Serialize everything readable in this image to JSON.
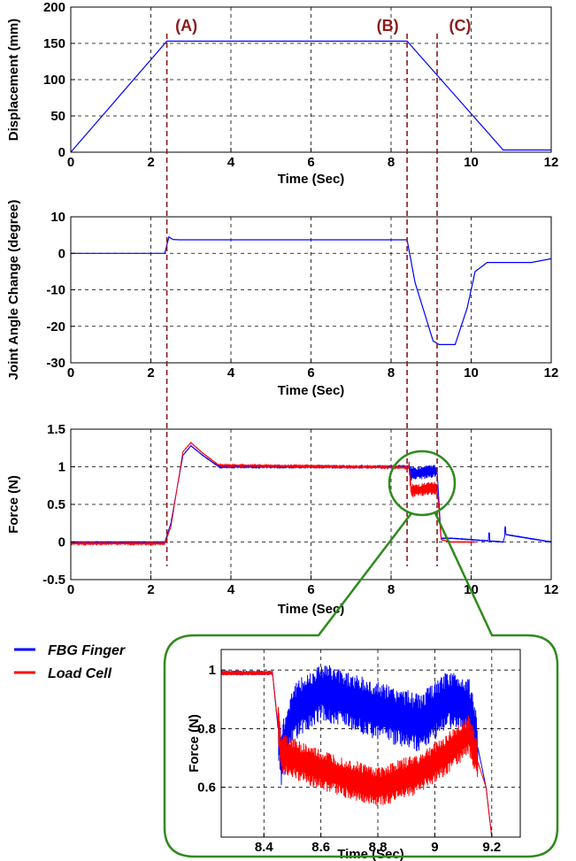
{
  "chart_data": [
    {
      "type": "line",
      "xlabel": "Time (Sec)",
      "ylabel": "Displacement (mm)",
      "xlim": [
        0,
        12
      ],
      "ylim": [
        0,
        200
      ],
      "xticks": [
        "0",
        "2",
        "4",
        "6",
        "8",
        "10",
        "12"
      ],
      "yticks": [
        "0",
        "50",
        "100",
        "150",
        "200"
      ],
      "grid": true,
      "series": [
        {
          "color": "#0000ff",
          "x": [
            0,
            2.4,
            8.4,
            10.8,
            12
          ],
          "y": [
            0,
            153,
            153,
            3,
            3
          ]
        }
      ]
    },
    {
      "type": "line",
      "xlabel": "Time (Sec)",
      "ylabel": "Joint Angle Change (degree)",
      "xlim": [
        0,
        12
      ],
      "ylim": [
        -30,
        10
      ],
      "xticks": [
        "0",
        "2",
        "4",
        "6",
        "8",
        "10",
        "12"
      ],
      "yticks": [
        "10",
        "0",
        "-10",
        "-20",
        "-30"
      ],
      "grid": true,
      "series": [
        {
          "color": "#0000ff",
          "x": [
            0,
            2.35,
            2.45,
            2.55,
            2.7,
            8.4,
            8.6,
            9.05,
            9.2,
            9.6,
            9.9,
            10.1,
            10.4,
            11.5,
            12
          ],
          "y": [
            0,
            0,
            4.5,
            3.8,
            3.7,
            3.7,
            -8,
            -24,
            -25,
            -25,
            -15,
            -5,
            -2.5,
            -2.5,
            -1.5
          ]
        }
      ]
    },
    {
      "type": "line",
      "xlabel": "Time (Sec)",
      "ylabel": "Force (N)",
      "xlim": [
        0,
        12
      ],
      "ylim": [
        -0.5,
        1.5
      ],
      "xticks": [
        "0",
        "2",
        "4",
        "6",
        "8",
        "10",
        "12"
      ],
      "yticks": [
        "1.5",
        "1",
        "0.5",
        "0",
        "-0.5"
      ],
      "grid": true,
      "series": [
        {
          "name": "FBG Finger",
          "color": "#0000ff",
          "x": [
            0,
            2.35,
            2.5,
            2.8,
            3.0,
            3.3,
            3.7,
            8.45,
            8.5,
            9.15,
            9.25,
            9.5,
            10.8,
            10.85,
            12
          ],
          "y": [
            0,
            0,
            0.25,
            1.15,
            1.28,
            1.15,
            1.0,
            1.0,
            0.9,
            0.95,
            0.05,
            0.05,
            0.0,
            0.1,
            0.0
          ]
        },
        {
          "name": "Load Cell",
          "color": "#ff0000",
          "x": [
            0,
            2.35,
            2.5,
            2.8,
            3.0,
            3.3,
            3.7,
            8.45,
            8.5,
            9.15,
            9.25,
            9.5,
            10.1
          ],
          "y": [
            -0.02,
            -0.02,
            0.2,
            1.2,
            1.32,
            1.18,
            1.02,
            0.99,
            0.68,
            0.72,
            0.03,
            0.0,
            0.0
          ]
        }
      ]
    },
    {
      "type": "line",
      "xlabel": "Time (Sec)",
      "ylabel": "Force (N)",
      "xlim": [
        8.25,
        9.3
      ],
      "ylim": [
        0.43,
        1.07
      ],
      "xticks": [
        "8.4",
        "8.6",
        "8.8",
        "9",
        "9.2"
      ],
      "yticks": [
        "1",
        "0.8",
        "0.6"
      ],
      "grid": true,
      "series": [
        {
          "name": "FBG Finger",
          "color": "#0000ff",
          "x": [
            8.25,
            8.43,
            8.46,
            8.5,
            8.6,
            8.8,
            8.95,
            9.05,
            9.12,
            9.18,
            9.2
          ],
          "y": [
            0.99,
            0.99,
            0.7,
            0.85,
            0.93,
            0.86,
            0.82,
            0.9,
            0.88,
            0.6,
            0.43
          ]
        },
        {
          "name": "Load Cell",
          "color": "#ff0000",
          "x": [
            8.25,
            8.43,
            8.46,
            8.5,
            8.6,
            8.8,
            8.95,
            9.05,
            9.12,
            9.18,
            9.2
          ],
          "y": [
            0.99,
            0.99,
            0.72,
            0.7,
            0.66,
            0.6,
            0.65,
            0.72,
            0.78,
            0.6,
            0.43
          ]
        }
      ]
    }
  ],
  "annotations": [
    "(A)",
    "(B)",
    "(C)"
  ],
  "event_times": [
    2.4,
    8.4,
    9.15
  ],
  "legend": [
    {
      "label": "FBG Finger",
      "color": "#0000ff"
    },
    {
      "label": "Load Cell",
      "color": "#ff0000"
    }
  ],
  "colors": {
    "event_line": "#8b1a1a",
    "zoom_outline": "#2e8b1e"
  }
}
